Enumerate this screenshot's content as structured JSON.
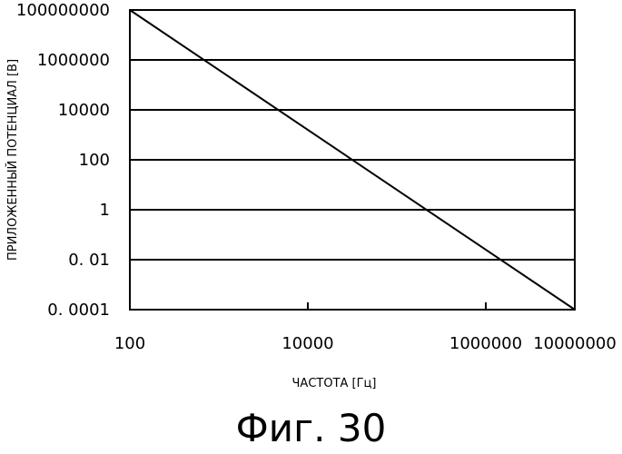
{
  "chart_data": {
    "type": "line",
    "xlabel": "ЧАСТОТА [Гц]",
    "ylabel": "ПРИЛОЖЕННЫЙ ПОТЕНЦИАЛ [В]",
    "x_scale": "log",
    "y_scale": "log",
    "xlim": [
      100,
      10000000
    ],
    "ylim": [
      0.0001,
      100000000
    ],
    "x_ticks": [
      100,
      10000,
      1000000,
      10000000
    ],
    "x_tick_labels": [
      "100",
      "10000",
      "1000000",
      "10000000"
    ],
    "y_ticks": [
      0.0001,
      0.01,
      1,
      100,
      10000,
      1000000,
      100000000
    ],
    "y_tick_labels": [
      "0. 0001",
      "0. 01",
      "1",
      "100",
      "10000",
      "1000000",
      "100000000"
    ],
    "grid": "horizontal",
    "series": [
      {
        "x": [
          100,
          10000000
        ],
        "y": [
          100000000,
          0.0001
        ],
        "color": "#000000"
      }
    ]
  },
  "caption": "Фиг. 30"
}
